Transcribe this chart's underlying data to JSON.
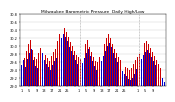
{
  "title": "Milwaukee Barometric Pressure  Daily High/Low",
  "title_fontsize": 3.2,
  "background_color": "#ffffff",
  "grid_color": "#cccccc",
  "high_color": "#cc0000",
  "low_color": "#0000cc",
  "ylim": [
    29.0,
    30.8
  ],
  "yticks": [
    29.0,
    29.2,
    29.4,
    29.6,
    29.8,
    30.0,
    30.2,
    30.4,
    30.6,
    30.8
  ],
  "ylabel_fontsize": 2.5,
  "xlabel_fontsize": 2.5,
  "highs": [
    29.75,
    29.85,
    29.7,
    29.88,
    30.05,
    30.15,
    29.9,
    29.72,
    29.68,
    29.82,
    29.95,
    30.05,
    29.88,
    29.78,
    29.7,
    29.62,
    29.75,
    29.85,
    29.92,
    30.12,
    30.28,
    30.4,
    30.5,
    30.45,
    30.35,
    30.22,
    30.1,
    30.0,
    29.88,
    29.78,
    29.72,
    29.68,
    29.8,
    29.92,
    30.05,
    30.15,
    29.98,
    29.85,
    29.72,
    29.62,
    29.6,
    29.72,
    29.85,
    29.95,
    30.05,
    30.2,
    30.28,
    30.18,
    30.05,
    29.92,
    29.82,
    29.72,
    29.65,
    29.58,
    29.52,
    29.48,
    29.44,
    29.4,
    29.45,
    29.55,
    29.65,
    29.72,
    29.8,
    29.9,
    30.0,
    30.08,
    30.12,
    30.05,
    29.95,
    29.85,
    29.75,
    29.65,
    29.55,
    29.45,
    29.38,
    29.28
  ],
  "lows": [
    29.52,
    29.65,
    29.48,
    29.68,
    29.82,
    29.92,
    29.65,
    29.5,
    29.44,
    29.6,
    29.72,
    29.82,
    29.65,
    29.55,
    29.48,
    29.4,
    29.52,
    29.62,
    29.7,
    29.9,
    30.05,
    30.18,
    30.28,
    30.22,
    30.12,
    29.98,
    29.88,
    29.78,
    29.65,
    29.55,
    29.48,
    29.44,
    29.58,
    29.7,
    29.82,
    29.92,
    29.75,
    29.62,
    29.5,
    29.4,
    29.38,
    29.5,
    29.62,
    29.75,
    29.88,
    30.0,
    30.08,
    29.96,
    29.82,
    29.7,
    29.6,
    29.5,
    29.42,
    29.36,
    29.3,
    29.24,
    29.18,
    29.15,
    29.2,
    29.3,
    29.42,
    29.5,
    29.58,
    29.68,
    29.78,
    29.85,
    29.9,
    29.82,
    29.72,
    29.62,
    29.52,
    29.44,
    29.36,
    29.28,
    29.2,
    29.1
  ],
  "month_separators": [
    30.5,
    61.5
  ],
  "xtick_positions": [
    0,
    4,
    8,
    12,
    16,
    20,
    24,
    28,
    30,
    34,
    38,
    42,
    46,
    50,
    54,
    58,
    61,
    65,
    69,
    73
  ],
  "xtick_labels": [
    "1",
    "5",
    "9",
    "13",
    "17",
    "21",
    "25",
    "",
    "1",
    "5",
    "9",
    "13",
    "17",
    "21",
    "25",
    "",
    "1",
    "5",
    "9",
    ""
  ]
}
